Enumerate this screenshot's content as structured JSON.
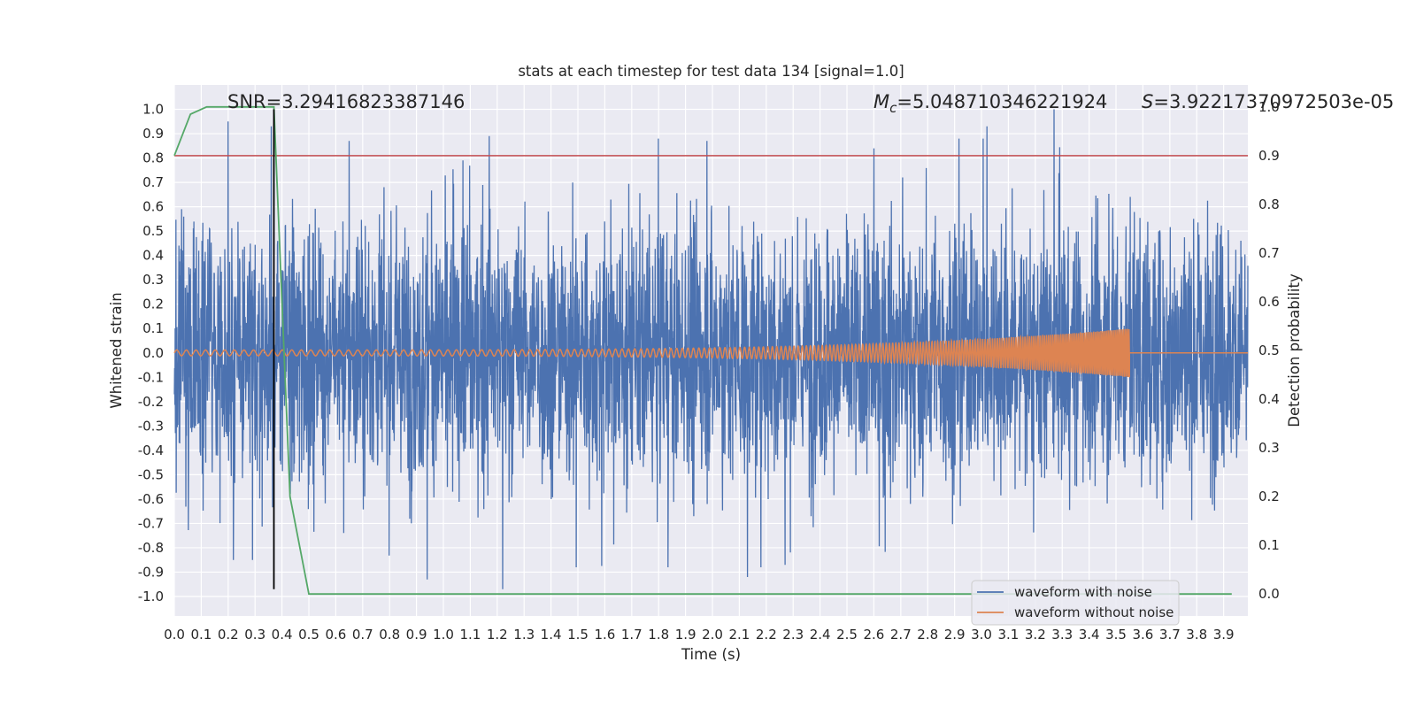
{
  "chart_data": {
    "type": "line",
    "title": "stats at each timestep for test data 134 [signal=1.0]",
    "xlabel": "Time (s)",
    "ylabel_left": "Whitened strain",
    "ylabel_right": "Detection probability",
    "xlim": [
      0.0,
      3.99
    ],
    "ylim_left": [
      -1.08,
      1.1
    ],
    "ylim_right": [
      -0.045,
      1.045
    ],
    "x_ticks": [
      "0.0",
      "0.1",
      "0.2",
      "0.3",
      "0.4",
      "0.5",
      "0.6",
      "0.7",
      "0.8",
      "0.9",
      "1.0",
      "1.1",
      "1.2",
      "1.3",
      "1.4",
      "1.5",
      "1.6",
      "1.7",
      "1.8",
      "1.9",
      "2.0",
      "2.1",
      "2.2",
      "2.3",
      "2.4",
      "2.5",
      "2.6",
      "2.7",
      "2.8",
      "2.9",
      "3.0",
      "3.1",
      "3.2",
      "3.3",
      "3.4",
      "3.5",
      "3.6",
      "3.7",
      "3.8",
      "3.9"
    ],
    "y_ticks_left": [
      "1.0",
      "0.9",
      "0.8",
      "0.7",
      "0.6",
      "0.5",
      "0.4",
      "0.3",
      "0.2",
      "0.1",
      "0.0",
      "-0.1",
      "-0.2",
      "-0.3",
      "-0.4",
      "-0.5",
      "-0.6",
      "-0.7",
      "-0.8",
      "-0.9",
      "-1.0"
    ],
    "y_ticks_right": [
      "1.0",
      "0.9",
      "0.8",
      "0.7",
      "0.6",
      "0.5",
      "0.4",
      "0.3",
      "0.2",
      "0.1",
      "0.0"
    ],
    "annotations": {
      "snr": "SNR=3.29416823387146",
      "mc_symbol": "M",
      "mc_sub": "c",
      "mc_value": "=5.048710346221924",
      "s_symbol": "S",
      "s_value": "=3.922173709725​03e-05"
    },
    "grid": true,
    "legend_position": "lower-right",
    "legend": [
      "waveform with noise",
      "waveform without noise"
    ],
    "colors": {
      "noise": "#4c72b0",
      "clean": "#dd8452",
      "probability": "#55a868",
      "threshold": "#c44e52",
      "marker": "#000000",
      "background": "#eaeaf2",
      "grid": "#ffffff"
    },
    "threshold_line": {
      "axis": "right",
      "y": 0.9
    },
    "marker_line": {
      "x": 0.37,
      "y_range": [
        -0.97,
        1.0
      ]
    },
    "series": [
      {
        "name": "waveform with noise",
        "axis": "left",
        "kind": "noise",
        "x_range": [
          0.0,
          3.99
        ],
        "typical_amplitude": 0.35,
        "peaks": [
          {
            "x": 0.2,
            "y": 0.95
          },
          {
            "x": 0.22,
            "y": -0.85
          },
          {
            "x": 0.29,
            "y": -0.85
          },
          {
            "x": 0.36,
            "y": 0.93
          },
          {
            "x": 0.65,
            "y": 0.87
          },
          {
            "x": 0.94,
            "y": -0.93
          },
          {
            "x": 1.17,
            "y": 0.89
          },
          {
            "x": 1.22,
            "y": -0.97
          },
          {
            "x": 1.98,
            "y": 0.87
          },
          {
            "x": 2.13,
            "y": -0.92
          },
          {
            "x": 2.27,
            "y": -0.87
          },
          {
            "x": 2.6,
            "y": 0.84
          },
          {
            "x": 3.02,
            "y": 0.93
          },
          {
            "x": 3.27,
            "y": 1.0
          }
        ]
      },
      {
        "name": "waveform without noise",
        "axis": "left",
        "kind": "chirp",
        "x_range": [
          0.0,
          3.55
        ],
        "start_amplitude": 0.012,
        "end_amplitude": 0.1,
        "freq_start_hz": 28,
        "freq_end_hz": 160,
        "flat_after": [
          3.55,
          3.99
        ]
      },
      {
        "name": "detection probability",
        "axis": "right",
        "x": [
          0.0,
          0.06,
          0.12,
          0.18,
          0.24,
          0.31,
          0.37,
          0.43,
          0.5,
          3.93
        ],
        "values": [
          0.9,
          0.985,
          1.0,
          1.0,
          1.0,
          1.0,
          1.0,
          0.2,
          0.0,
          0.0
        ]
      }
    ]
  }
}
